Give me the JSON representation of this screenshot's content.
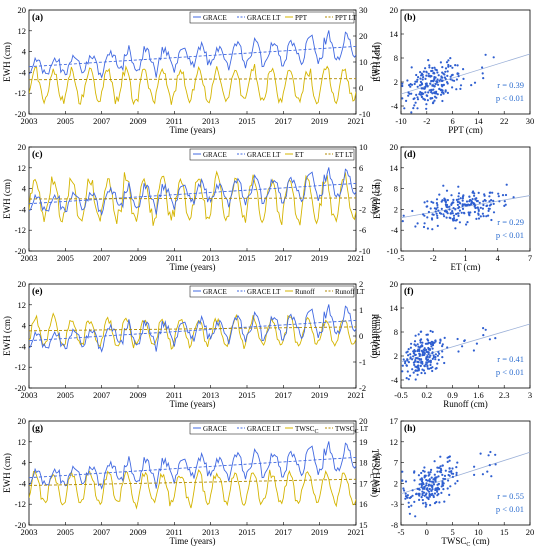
{
  "colors": {
    "grace": "#4169e1",
    "grace_lt": "#4169e1",
    "forcing": "#d4b400",
    "forcing_lt": "#d4b400",
    "scatter": "#2f5fd0",
    "fit": "#9bb0d8",
    "stat": "#2f6fd0"
  },
  "chart_data": [
    {
      "id": "a",
      "type": "line",
      "panel_label": "(a)",
      "xlabel": "Time (years)",
      "ylabel": "EWH (cm)",
      "ylabel2": "PPT (cm)",
      "xticks": [
        "2003",
        "2005",
        "2007",
        "2009",
        "2011",
        "2013",
        "2015",
        "2017",
        "2019",
        "2021"
      ],
      "xlim": [
        2003,
        2021
      ],
      "ylim": [
        -20,
        20
      ],
      "yticks": [
        -20,
        -12,
        -4,
        4,
        12,
        20
      ],
      "ylim2": [
        -10,
        30
      ],
      "yticks2": [
        -10,
        0,
        10,
        20,
        30
      ],
      "legend": [
        "GRACE",
        "GRACE LT",
        "PPT",
        "PPT LT"
      ],
      "grace_lt": [
        [
          2003,
          -1.8
        ],
        [
          2021,
          6.0
        ]
      ],
      "forcing_lt": [
        [
          2003,
          3.2
        ],
        [
          2021,
          3.6
        ]
      ],
      "forcing_amp": 6.0,
      "forcing_base": 1.0
    },
    {
      "id": "b",
      "type": "scatter",
      "panel_label": "(b)",
      "xlabel": "PPT (cm)",
      "ylabel": "EWH (cm)",
      "xticks": [
        "-10",
        "-2",
        "6",
        "14",
        "22",
        "30"
      ],
      "xlim": [
        -10,
        30
      ],
      "yticks": [
        "-4",
        "2",
        "8",
        "14",
        "20"
      ],
      "ylim": [
        -6,
        20
      ],
      "r": "r = 0.39",
      "p": "p < 0.01",
      "fit": [
        [
          -10,
          -1.0
        ],
        [
          30,
          9.0
        ]
      ],
      "cx": 0.0,
      "sx": 5.0,
      "slope": 0.25
    },
    {
      "id": "c",
      "type": "line",
      "panel_label": "(c)",
      "xlabel": "Time (years)",
      "ylabel": "EWH (cm)",
      "ylabel2": "ET (cm)",
      "xticks": [
        "2003",
        "2005",
        "2007",
        "2009",
        "2011",
        "2013",
        "2015",
        "2017",
        "2019",
        "2021"
      ],
      "xlim": [
        2003,
        2021
      ],
      "ylim": [
        -20,
        20
      ],
      "yticks": [
        -20,
        -12,
        -4,
        4,
        12,
        20
      ],
      "ylim2": [
        -10,
        10
      ],
      "yticks2": [
        -10,
        -6,
        -2,
        2,
        6,
        10
      ],
      "legend": [
        "GRACE",
        "GRACE LT",
        "ET",
        "ET LT"
      ],
      "grace_lt": [
        [
          2003,
          -1.8
        ],
        [
          2021,
          6.0
        ]
      ],
      "forcing_lt": [
        [
          2003,
          0.0
        ],
        [
          2021,
          0.2
        ]
      ],
      "forcing_amp": 4.0,
      "forcing_base": 0.0
    },
    {
      "id": "d",
      "type": "scatter",
      "panel_label": "(d)",
      "xlabel": "ET (cm)",
      "ylabel": "EWH (cm)",
      "xticks": [
        "-5",
        "-2",
        "1",
        "4",
        "7"
      ],
      "xlim": [
        -5,
        7
      ],
      "yticks": [
        "-10",
        "-4",
        "2",
        "8",
        "14",
        "20"
      ],
      "ylim": [
        -10,
        20
      ],
      "r": "r = 0.29",
      "p": "p < 0.01",
      "fit": [
        [
          -5,
          -0.4
        ],
        [
          7,
          6.0
        ]
      ],
      "cx": 0.8,
      "sx": 2.6,
      "slope": 0.5
    },
    {
      "id": "e",
      "type": "line",
      "panel_label": "(e)",
      "xlabel": "Time (years)",
      "ylabel": "EWH (cm)",
      "ylabel2": "Runoff (cm)",
      "xticks": [
        "2003",
        "2005",
        "2007",
        "2009",
        "2011",
        "2013",
        "2015",
        "2017",
        "2019",
        "2021"
      ],
      "xlim": [
        2003,
        2021
      ],
      "ylim": [
        -20,
        20
      ],
      "yticks": [
        -20,
        -12,
        -4,
        4,
        12,
        20
      ],
      "ylim2": [
        -2,
        2
      ],
      "yticks2": [
        -2,
        -1,
        0,
        1,
        2
      ],
      "legend": [
        "GRACE",
        "GRACE LT",
        "Runoff",
        "Runoff LT"
      ],
      "grace_lt": [
        [
          2003,
          -1.8
        ],
        [
          2021,
          6.0
        ]
      ],
      "forcing_lt": [
        [
          2003,
          0.2
        ],
        [
          2021,
          0.35
        ]
      ],
      "forcing_amp": 0.5,
      "forcing_base": 0.15
    },
    {
      "id": "f",
      "type": "scatter",
      "panel_label": "(f)",
      "xlabel": "Runoff (cm)",
      "ylabel": "EWH (cm)",
      "xticks": [
        "-0.5",
        "0.2",
        "0.9",
        "1.6",
        "2.3",
        "3"
      ],
      "xlim": [
        -0.5,
        3
      ],
      "yticks": [
        "-4",
        "2",
        "8",
        "14",
        "20"
      ],
      "ylim": [
        -6,
        20
      ],
      "r": "r = 0.41",
      "p": "p < 0.01",
      "fit": [
        [
          -0.5,
          0.5
        ],
        [
          3,
          10.0
        ]
      ],
      "cx": 0.1,
      "sx": 0.35,
      "slope": 4.0
    },
    {
      "id": "g",
      "type": "line",
      "panel_label": "(g)",
      "xlabel": "Time (years)",
      "ylabel": "EWH (cm)",
      "ylabel2": "TWSC_C (cm)",
      "xticks": [
        "2003",
        "2005",
        "2007",
        "2009",
        "2011",
        "2013",
        "2015",
        "2017",
        "2019",
        "2021"
      ],
      "xlim": [
        2003,
        2021
      ],
      "ylim": [
        -20,
        20
      ],
      "yticks": [
        -20,
        -12,
        -4,
        4,
        12,
        20
      ],
      "ylim2": [
        15,
        20
      ],
      "yticks2": [
        15,
        16,
        17,
        18,
        19,
        20
      ],
      "legend": [
        "GRACE",
        "GRACE LT",
        "TWSC_C",
        "TWSC_C LT"
      ],
      "grace_lt": [
        [
          2003,
          -1.8
        ],
        [
          2021,
          6.0
        ]
      ],
      "forcing_lt": [
        [
          2003,
          16.9
        ],
        [
          2021,
          17.2
        ]
      ],
      "forcing_amp": 0.7,
      "forcing_base": 16.8
    },
    {
      "id": "h",
      "type": "scatter",
      "panel_label": "(h)",
      "xlabel": "TWSC_C (cm)",
      "ylabel": "EWH (cm)",
      "xticks": [
        "-5",
        "0",
        "5",
        "10",
        "15",
        "20"
      ],
      "xlim": [
        -5,
        20
      ],
      "yticks": [
        "-8",
        "-3",
        "2",
        "7",
        "12",
        "17"
      ],
      "ylim": [
        -8,
        17
      ],
      "r": "r = 0.55",
      "p": "p < 0.01",
      "fit": [
        [
          -5,
          -0.5
        ],
        [
          20,
          9.5
        ]
      ],
      "cx": 0.5,
      "sx": 3.5,
      "slope": 0.55
    }
  ]
}
